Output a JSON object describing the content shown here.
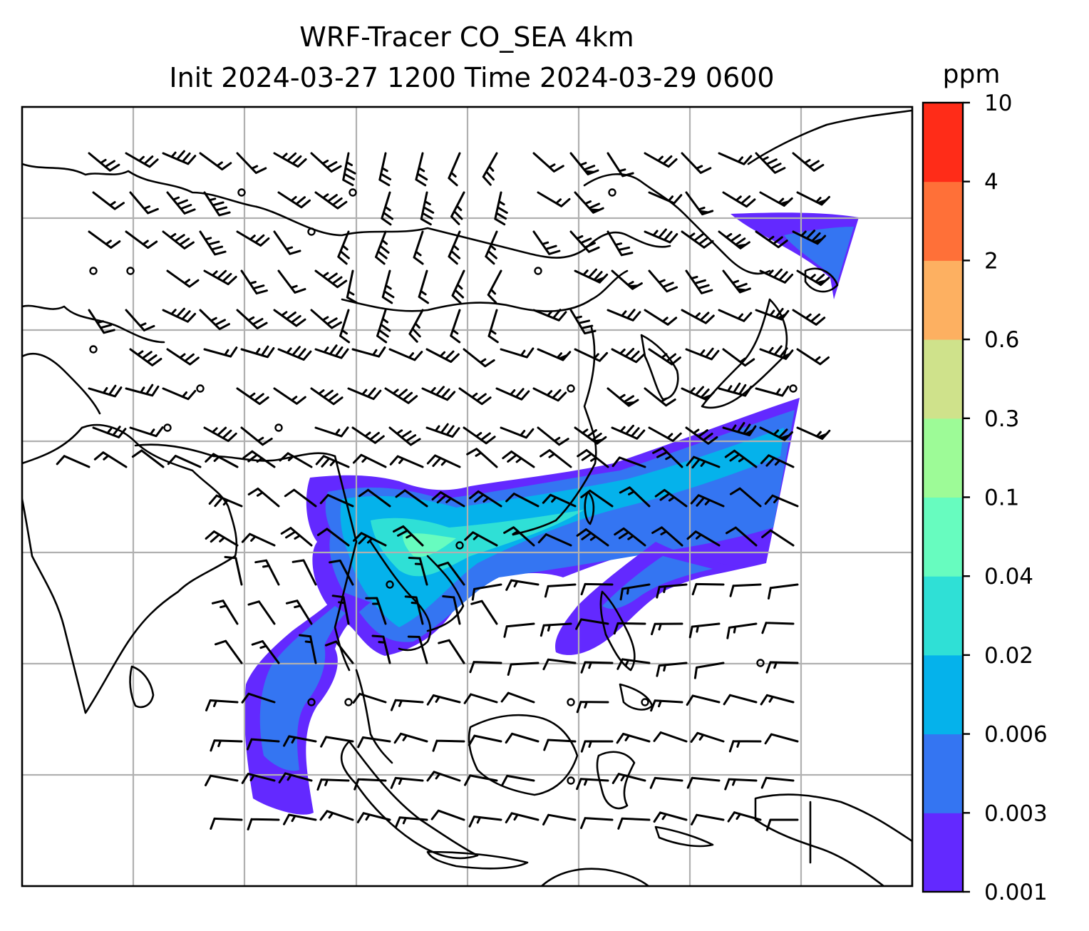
{
  "title": {
    "line1": "WRF-Tracer CO_SEA 4km",
    "line2": "Init 2024-03-27 1200 Time 2024-03-29 0600"
  },
  "colorbar": {
    "units": "ppm",
    "levels": [
      "0.001",
      "0.003",
      "0.006",
      "0.02",
      "0.04",
      "0.1",
      "0.3",
      "0.6",
      "2",
      "4",
      "10"
    ],
    "colors": [
      "#6329ff",
      "#3475f2",
      "#05b2eb",
      "#2fe0d6",
      "#67fcbf",
      "#9dfb97",
      "#cfe28b",
      "#fdb061",
      "#ff7038",
      "#ff2c18"
    ]
  },
  "map": {
    "plume_colors": {
      "low": "#6329ff",
      "mid": "#3475f2",
      "high": "#05b2eb",
      "peak": "#2fe0d6",
      "max": "#67fcbf"
    },
    "gridlines": true,
    "wind_barbs": true
  }
}
